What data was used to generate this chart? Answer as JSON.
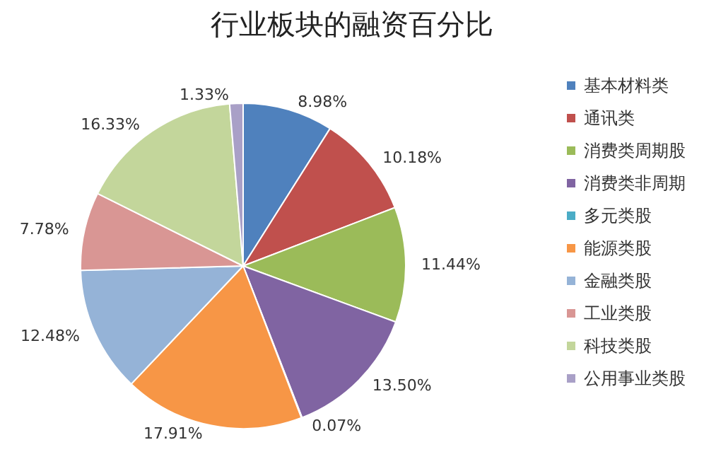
{
  "chart_data": {
    "type": "pie",
    "title": "行业板块的融资百分比",
    "categories": [
      "基本材料类",
      "通讯类",
      "消费类周期股",
      "消费类非周期",
      "多元类股",
      "能源类股",
      "金融类股",
      "工业类股",
      "科技类股",
      "公用事业类股"
    ],
    "values": [
      8.98,
      10.18,
      11.44,
      13.5,
      0.07,
      17.91,
      12.48,
      7.78,
      16.33,
      1.33
    ],
    "value_labels": [
      "8.98%",
      "10.18%",
      "11.44%",
      "13.50%",
      "0.07%",
      "17.91%",
      "12.48%",
      "7.78%",
      "16.33%",
      "1.33%"
    ],
    "colors": [
      "#4f81bd",
      "#c0504d",
      "#9bbb59",
      "#8064a2",
      "#4bacc6",
      "#f79646",
      "#95b3d7",
      "#d99694",
      "#c3d69b",
      "#a9a0c7"
    ],
    "legend": "right"
  }
}
